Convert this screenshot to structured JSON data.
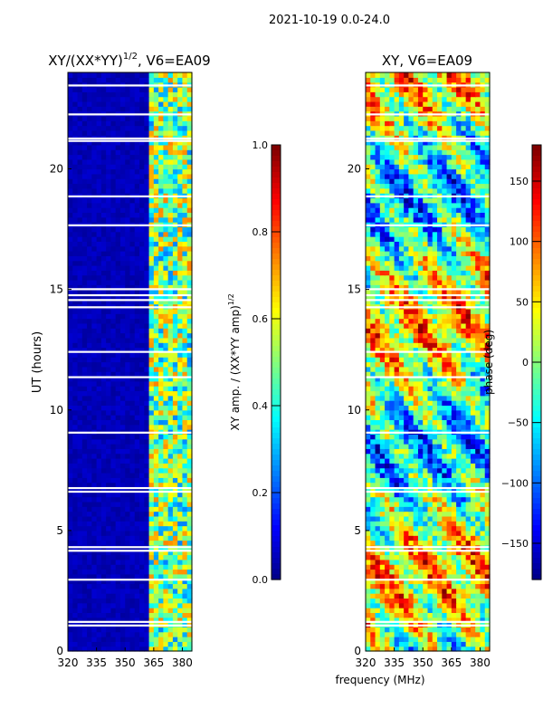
{
  "figure": {
    "suptitle": "2021-10-19 0.0-24.0",
    "shared_xlabel": "frequency (MHz)"
  },
  "chart_data": [
    {
      "type": "heatmap",
      "title": "XY/(XX*YY)",
      "title_exponent": "1/2",
      "title_suffix": ", V6=EA09",
      "xlabel": "",
      "ylabel": "UT (hours)",
      "xlim": [
        320,
        385
      ],
      "ylim": [
        0,
        24
      ],
      "xticks": [
        320,
        335,
        350,
        365,
        380
      ],
      "yticks": [
        0,
        5,
        10,
        15,
        20
      ],
      "colormap": "jet",
      "colorbar": {
        "label": "XY amp. / (XX*YY amp)",
        "label_exponent": "1/2",
        "range": [
          0.0,
          1.0
        ],
        "ticks": [
          "0.0",
          "0.2",
          "0.4",
          "0.6",
          "0.8",
          "1.0"
        ],
        "tick_values": [
          0.0,
          0.2,
          0.4,
          0.6,
          0.8,
          1.0
        ]
      },
      "description_levels": {
        "low_band_320_361": 0.05,
        "high_band_361_385": 0.45
      }
    },
    {
      "type": "heatmap",
      "title": "XY, V6=EA09",
      "xlabel": "frequency (MHz)",
      "ylabel": "",
      "xlim": [
        320,
        385
      ],
      "ylim": [
        0,
        24
      ],
      "xticks": [
        320,
        335,
        350,
        365,
        380
      ],
      "yticks": [
        0,
        5,
        10,
        15,
        20
      ],
      "colormap": "jet",
      "colorbar": {
        "label": "phase (deg)",
        "range": [
          -180,
          180
        ],
        "ticks": [
          "150",
          "100",
          "50",
          "0",
          "−50",
          "−100",
          "−150"
        ],
        "tick_values": [
          150,
          100,
          50,
          0,
          -50,
          -100,
          -150
        ]
      }
    }
  ],
  "colors": {
    "jet_low": "#00007f",
    "jet_high": "#7f0000",
    "blank_row": "#ffffff"
  }
}
